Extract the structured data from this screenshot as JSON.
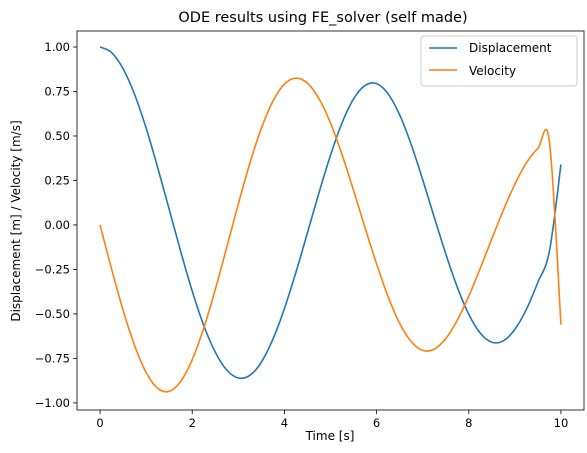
{
  "chart_data": {
    "type": "line",
    "title": "ODE results using FE_solver (self made)",
    "xlabel": "Time [s]",
    "ylabel": "Displacement [m] / Velocity [m/s]",
    "xlim": [
      -0.5,
      10.5
    ],
    "ylim": [
      -1.04,
      1.09
    ],
    "xticks": [
      0,
      2,
      4,
      6,
      8,
      10
    ],
    "xtick_labels": [
      "0",
      "2",
      "4",
      "6",
      "8",
      "10"
    ],
    "yticks": [
      -1.0,
      -0.75,
      -0.5,
      -0.25,
      0.0,
      0.25,
      0.5,
      0.75,
      1.0
    ],
    "ytick_labels": [
      "−1.00",
      "−0.75",
      "−0.50",
      "−0.25",
      "0.00",
      "0.25",
      "0.50",
      "0.75",
      "1.00"
    ],
    "grid": false,
    "legend_position": "top-right",
    "x": [
      0.0,
      0.25,
      0.5,
      0.75,
      1.0,
      1.25,
      1.5,
      1.75,
      2.0,
      2.25,
      2.5,
      2.75,
      3.0,
      3.25,
      3.5,
      3.75,
      4.0,
      4.25,
      4.5,
      4.75,
      5.0,
      5.25,
      5.5,
      5.75,
      6.0,
      6.25,
      6.5,
      6.75,
      7.0,
      7.25,
      7.5,
      7.75,
      8.0,
      8.25,
      8.5,
      8.75,
      9.0,
      9.25,
      9.5,
      9.75,
      10.0
    ],
    "series": [
      {
        "name": "Displacement",
        "color": "#1f77b4",
        "values": [
          1.0,
          0.969,
          0.878,
          0.733,
          0.544,
          0.323,
          0.088,
          -0.149,
          -0.372,
          -0.565,
          -0.715,
          -0.816,
          -0.86,
          -0.845,
          -0.771,
          -0.642,
          -0.47,
          -0.266,
          -0.044,
          0.181,
          0.392,
          0.573,
          0.708,
          0.784,
          0.794,
          0.737,
          0.619,
          0.453,
          0.255,
          0.044,
          -0.162,
          -0.349,
          -0.502,
          -0.608,
          -0.659,
          -0.651,
          -0.587,
          -0.474,
          -0.322,
          -0.147,
          0.34
        ]
      },
      {
        "name": "Velocity",
        "color": "#ff7f0e",
        "values": [
          0.0,
          -0.247,
          -0.479,
          -0.678,
          -0.829,
          -0.918,
          -0.935,
          -0.879,
          -0.757,
          -0.58,
          -0.363,
          -0.125,
          0.118,
          0.346,
          0.543,
          0.695,
          0.792,
          0.825,
          0.797,
          0.71,
          0.573,
          0.396,
          0.194,
          -0.016,
          -0.219,
          -0.403,
          -0.553,
          -0.655,
          -0.705,
          -0.698,
          -0.639,
          -0.536,
          -0.4,
          -0.243,
          -0.078,
          0.083,
          0.229,
          0.349,
          0.43,
          0.468,
          -0.56
        ]
      }
    ]
  }
}
